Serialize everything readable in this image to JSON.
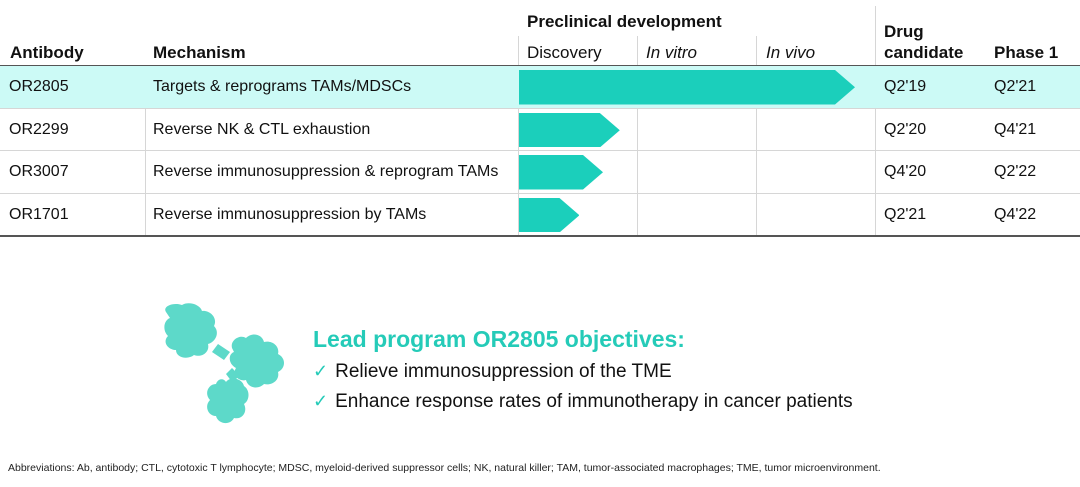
{
  "headers": {
    "antibody": "Antibody",
    "mechanism": "Mechanism",
    "preclinical": "Preclinical development",
    "discovery": "Discovery",
    "in_vitro": "In vitro",
    "in_vivo": "In vivo",
    "drug_candidate": [
      "Drug",
      "candidate"
    ],
    "phase1": "Phase 1"
  },
  "rows": [
    {
      "antibody": "OR2805",
      "mechanism": "Targets & reprograms TAMs/MDSCs",
      "progress": 1.0,
      "drug_candidate": "Q2'19",
      "phase1": "Q2'21",
      "highlighted": true
    },
    {
      "antibody": "OR2299",
      "mechanism": "Reverse NK & CTL exhaustion",
      "progress": 0.3,
      "drug_candidate": "Q2'20",
      "phase1": "Q4'21",
      "highlighted": false
    },
    {
      "antibody": "OR3007",
      "mechanism": "Reverse immunosuppression & reprogram TAMs",
      "progress": 0.25,
      "drug_candidate": "Q4'20",
      "phase1": "Q2'22",
      "highlighted": false
    },
    {
      "antibody": "OR1701",
      "mechanism": "Reverse immunosuppression by TAMs",
      "progress": 0.18,
      "drug_candidate": "Q2'21",
      "phase1": "Q4'22",
      "highlighted": false
    }
  ],
  "colors": {
    "arrow": "#1bcfbb",
    "highlight_row": "#ccfaf6",
    "accent": "#25cbb8"
  },
  "lead": {
    "icon": "antibody-icon",
    "title": "Lead program OR2805 objectives:",
    "objectives": [
      "Relieve immunosuppression of the TME",
      "Enhance response rates of immunotherapy in cancer patients"
    ]
  },
  "footnote": "Abbreviations: Ab, antibody; CTL, cytotoxic T lymphocyte; MDSC, myeloid-derived suppressor cells; NK, natural killer; TAM, tumor-associated macrophages; TME, tumor microenvironment."
}
